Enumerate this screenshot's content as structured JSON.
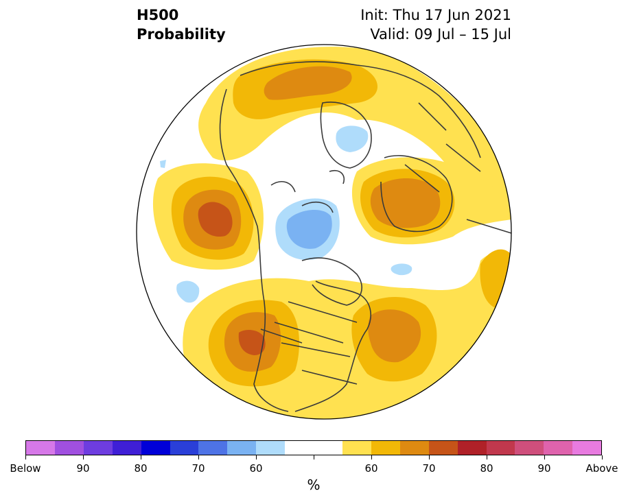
{
  "header": {
    "title_line1": "H500",
    "title_line2": "Probability",
    "init": "Init: Thu 17 Jun 2021",
    "valid": "Valid: 09 Jul – 15 Jul"
  },
  "colorbar": {
    "unit": "%",
    "colors": [
      "#d678e8",
      "#a050e0",
      "#6e3de0",
      "#3f1fd6",
      "#0000d8",
      "#2a3fd8",
      "#4e73e6",
      "#7ab2f2",
      "#afdcfb",
      "#ffffff",
      "#ffffff",
      "#ffe150",
      "#f2b807",
      "#de8a11",
      "#c65418",
      "#b02128",
      "#c1384d",
      "#cf4f7c",
      "#df63ad",
      "#e87be0"
    ],
    "tick_labels": [
      "Below",
      "90",
      "80",
      "70",
      "60",
      "",
      "",
      "60",
      "70",
      "80",
      "90",
      "Above"
    ]
  },
  "map": {
    "ocean_color": "#ffffff",
    "coastline_color": "#3a3a3a",
    "anomaly_colors": {
      "p50": "#ffe150",
      "p60": "#f2b807",
      "p65": "#de8a11",
      "p70": "#c65418",
      "n60": "#afdcfb",
      "n65": "#7ab2f2"
    }
  }
}
